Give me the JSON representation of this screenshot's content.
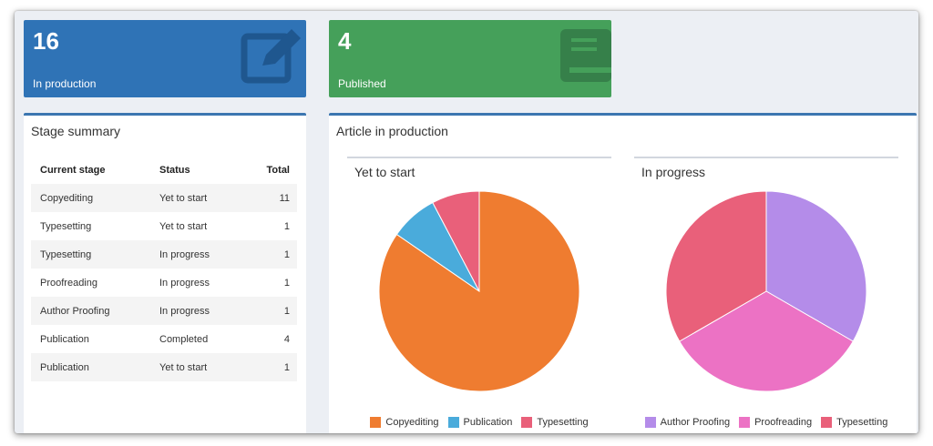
{
  "stats": {
    "in_production": {
      "value": "16",
      "label": "In production",
      "icon": "edit-icon",
      "color": "#2f73b6"
    },
    "published": {
      "value": "4",
      "label": "Published",
      "icon": "book-icon",
      "color": "#45a05a"
    }
  },
  "stage_summary": {
    "title": "Stage summary",
    "headers": [
      "Current stage",
      "Status",
      "Total"
    ],
    "rows": [
      [
        "Copyediting",
        "Yet to start",
        "11"
      ],
      [
        "Typesetting",
        "Yet to start",
        "1"
      ],
      [
        "Typesetting",
        "In progress",
        "1"
      ],
      [
        "Proofreading",
        "In progress",
        "1"
      ],
      [
        "Author Proofing",
        "In progress",
        "1"
      ],
      [
        "Publication",
        "Completed",
        "4"
      ],
      [
        "Publication",
        "Yet to start",
        "1"
      ]
    ]
  },
  "articles": {
    "title": "Article in production"
  },
  "chart_data": [
    {
      "type": "pie",
      "title": "Yet to start",
      "categories": [
        "Copyediting",
        "Publication",
        "Typesetting"
      ],
      "values": [
        11,
        1,
        1
      ],
      "colors": [
        "#ef7c30",
        "#4aabdb",
        "#e9607a"
      ],
      "legend_position": "bottom"
    },
    {
      "type": "pie",
      "title": "In progress",
      "categories": [
        "Author Proofing",
        "Proofreading",
        "Typesetting"
      ],
      "values": [
        1,
        1,
        1
      ],
      "colors": [
        "#b48ce9",
        "#ec72c4",
        "#e9607a"
      ],
      "legend_position": "bottom"
    }
  ]
}
